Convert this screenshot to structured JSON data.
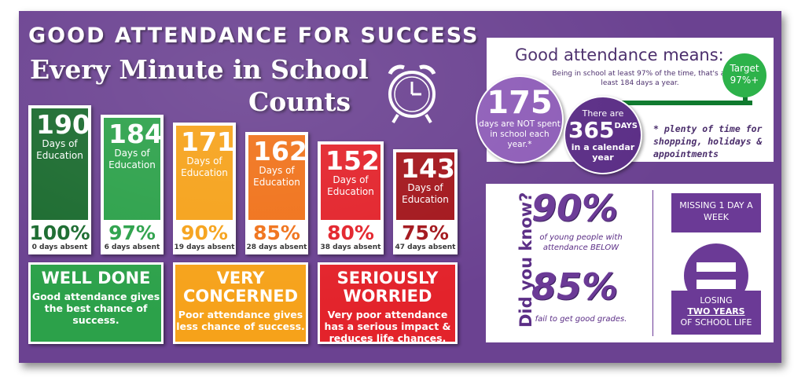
{
  "header": {
    "title": "GOOD ATTENDANCE FOR SUCCESS",
    "subtitle_line1": "Every Minute in School",
    "subtitle_line2": "Counts"
  },
  "bars": [
    {
      "days": "190",
      "caption": "Days of Education",
      "percent": "100%",
      "absent": "0 days absent",
      "color": "#1b6b2f",
      "pct_color": "#1b6b2f"
    },
    {
      "days": "184",
      "caption": "Days of Education",
      "percent": "97%",
      "absent": "6 days absent",
      "color": "#2ca14a",
      "pct_color": "#2ca14a"
    },
    {
      "days": "171",
      "caption": "Days of Education",
      "percent": "90%",
      "absent": "19 days absent",
      "color": "#f6a21a",
      "pct_color": "#f6a21a"
    },
    {
      "days": "162",
      "caption": "Days of Education",
      "percent": "85%",
      "absent": "28 days absent",
      "color": "#f0721a",
      "pct_color": "#f0721a"
    },
    {
      "days": "152",
      "caption": "Days of Education",
      "percent": "80%",
      "absent": "38 days absent",
      "color": "#e3232b",
      "pct_color": "#e3232b"
    },
    {
      "days": "143",
      "caption": "Days of Education",
      "percent": "75%",
      "absent": "47 days absent",
      "color": "#a3161c",
      "pct_color": "#a3161c"
    }
  ],
  "status": [
    {
      "heading": "WELL DONE",
      "text": "Good attendance gives the best chance of success.",
      "color": "#2ca14a"
    },
    {
      "heading": "VERY CONCERNED",
      "text": "Poor attendance gives less chance of success.",
      "color": "#f6a21a"
    },
    {
      "heading": "SERIOUSLY WORRIED",
      "text": "Very poor attendance has a serious impact & reduces life chances.",
      "color": "#e3232b"
    }
  ],
  "means": {
    "title": "Good attendance means:",
    "text": "Being in school at least 97% of the time, that's at least 184 days a year.",
    "target_label": "Target",
    "target_value": "97%+",
    "not_spent_number": "175",
    "not_spent_text": "days are NOT spent in school each year.*",
    "there_are": "There are",
    "days_number": "365",
    "days_label": "DAYS",
    "calendar_text": "in a calendar year",
    "note": "* plenty of time for shopping, holidays & appointments"
  },
  "did_you_know": {
    "label": "Did you know?",
    "stat1": "90%",
    "stat1_text": "of young people with attendance BELOW",
    "stat2": "85%",
    "stat2_text": "fail to get good grades.",
    "missing_text": "MISSING 1 DAY A WEEK",
    "losing_line1": "LOSING",
    "losing_line2": "TWO YEARS",
    "losing_line3": "OF SCHOOL LIFE"
  }
}
